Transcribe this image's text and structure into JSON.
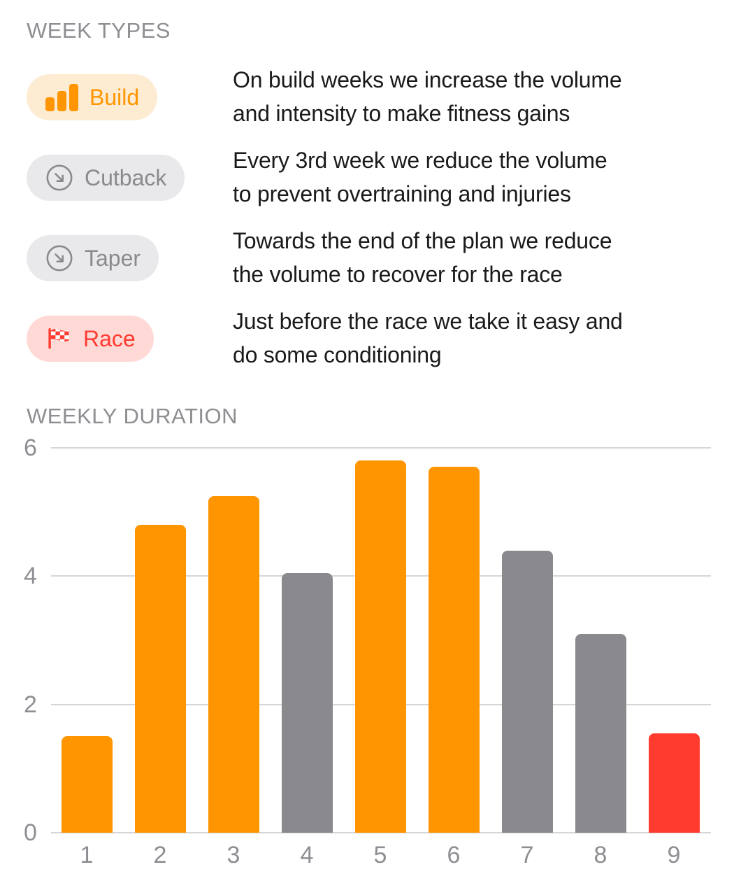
{
  "colors": {
    "accent_orange": "#FF9500",
    "accent_gray": "#8A8A8E",
    "accent_red": "#FF3B30",
    "pill_orange_bg": "#FDEBD2",
    "pill_gray_bg": "#E9E9EB",
    "pill_red_bg": "#FFD9D6",
    "section_header": "#8E8E93",
    "body_text": "#1A1A1A",
    "gridline": "#D6D6D8",
    "axis_label": "#8E8E93",
    "checker_white": "#FFFFFF"
  },
  "week_types": {
    "title": "WEEK TYPES",
    "items": [
      {
        "label": "Build",
        "icon": "bar-chart-icon",
        "type": "build",
        "description": "On build weeks we increase the volume\nand intensity to make fitness gains"
      },
      {
        "label": "Cutback",
        "icon": "arrow-down-right-circle-icon",
        "type": "cutback",
        "description": "Every 3rd week we reduce the volume\nto prevent overtraining and injuries"
      },
      {
        "label": "Taper",
        "icon": "arrow-down-right-circle-icon",
        "type": "taper",
        "description": "Towards the end of the plan we reduce\nthe volume to recover for the race"
      },
      {
        "label": "Race",
        "icon": "checkered-flag-icon",
        "type": "race",
        "description": "Just before the race we take it easy and\ndo some conditioning"
      }
    ]
  },
  "weekly_duration": {
    "title": "WEEKLY DURATION"
  },
  "chart_data": {
    "type": "bar",
    "title": "WEEKLY DURATION",
    "categories": [
      "1",
      "2",
      "3",
      "4",
      "5",
      "6",
      "7",
      "8",
      "9"
    ],
    "values": [
      1.5,
      4.8,
      5.25,
      4.05,
      5.8,
      5.7,
      4.4,
      3.1,
      1.55
    ],
    "bar_week_types": [
      "build",
      "build",
      "build",
      "cutback",
      "build",
      "build",
      "taper",
      "taper",
      "race"
    ],
    "bar_colors": {
      "build": "#FF9500",
      "cutback": "#8A8A8E",
      "taper": "#8A8A8E",
      "race": "#FF3B30"
    },
    "yticks": [
      0,
      2,
      4,
      6
    ],
    "ylim": [
      0,
      6
    ],
    "grid": true,
    "legend_position": "none",
    "xlabel": "",
    "ylabel": ""
  }
}
